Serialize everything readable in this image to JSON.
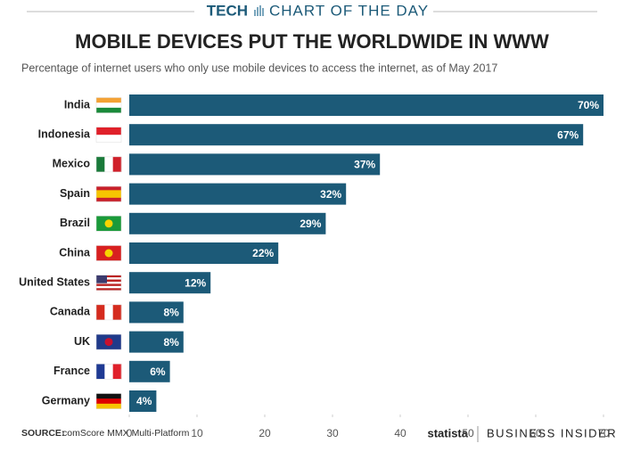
{
  "header": {
    "section": "TECH",
    "label": "CHART OF THE DAY"
  },
  "chart_data": {
    "type": "bar",
    "orientation": "horizontal",
    "title": "MOBILE DEVICES PUT THE WORLDWIDE IN WWW",
    "subtitle": "Percentage of internet users who only use mobile devices to access the internet, as of May 2017",
    "categories": [
      "India",
      "Indonesia",
      "Mexico",
      "Spain",
      "Brazil",
      "China",
      "United States",
      "Canada",
      "UK",
      "France",
      "Germany"
    ],
    "values": [
      70,
      67,
      37,
      32,
      29,
      22,
      12,
      8,
      8,
      6,
      4
    ],
    "value_labels": [
      "70%",
      "67%",
      "37%",
      "32%",
      "29%",
      "22%",
      "12%",
      "8%",
      "8%",
      "6%",
      "4%"
    ],
    "color": "#1c5a78",
    "xlim": [
      0,
      70
    ],
    "xticks": [
      0,
      10,
      20,
      30,
      40,
      50,
      60,
      70
    ],
    "grid": false
  },
  "footer": {
    "source_label": "SOURCE:",
    "source": "comScore MMX Multi-Platform",
    "brand1": "statista",
    "brand2": "BUSINESS INSIDER"
  }
}
